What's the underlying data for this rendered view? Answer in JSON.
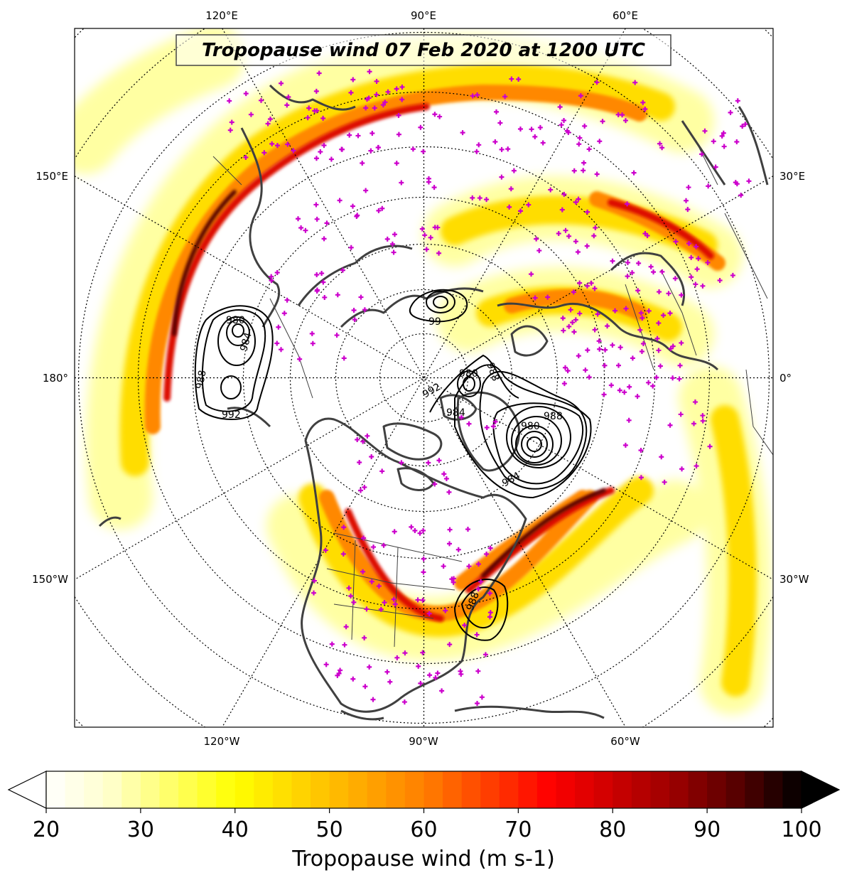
{
  "title": "Tropopause wind 07 Feb 2020 at 1200 UTC",
  "colorbar": {
    "label": "Tropopause wind (m s-1)",
    "min": 20,
    "max": 100,
    "ticks": [
      "20",
      "30",
      "40",
      "50",
      "60",
      "70",
      "80",
      "90",
      "100"
    ],
    "colors": [
      "#ffffff",
      "#ffffcc",
      "#ffff66",
      "#ffff00",
      "#ffd500",
      "#ffaa00",
      "#ff7f00",
      "#ff4000",
      "#ff0000",
      "#cc0000",
      "#990000",
      "#550000",
      "#000000"
    ]
  },
  "graticule_labels": {
    "top": [
      "120°E",
      "90°E",
      "60°E"
    ],
    "bottom": [
      "120°W",
      "90°W",
      "60°W"
    ],
    "left": [
      "150°E",
      "180°",
      "150°W"
    ],
    "right": [
      "30°E",
      "0°",
      "30°W"
    ]
  },
  "pressure_contours": {
    "units_hint": "hPa",
    "labels": [
      "980",
      "984",
      "988",
      "992",
      "99",
      "980",
      "984",
      "988",
      "992",
      "980",
      "984",
      "988",
      "988"
    ]
  },
  "marker_color": "#cc00cc",
  "coast_color": "#404040",
  "contour_color": "#000000"
}
